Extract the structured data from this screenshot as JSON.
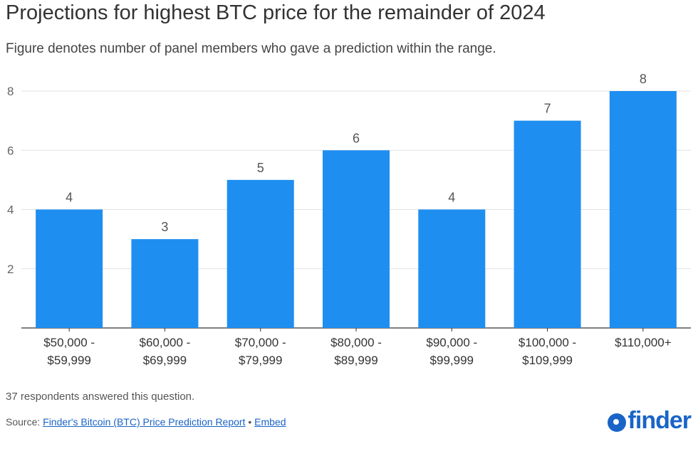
{
  "chart_data": {
    "type": "bar",
    "title": "Projections for highest BTC price for the remainder of 2024",
    "subtitle": "Figure denotes number of panel members who gave a prediction within the range.",
    "categories": [
      [
        "$50,000 -",
        "$59,999"
      ],
      [
        "$60,000 -",
        "$69,999"
      ],
      [
        "$70,000 -",
        "$79,999"
      ],
      [
        "$80,000 -",
        "$89,999"
      ],
      [
        "$90,000 -",
        "$99,999"
      ],
      [
        "$100,000 -",
        "$109,999"
      ],
      [
        "$110,000+"
      ]
    ],
    "values": [
      4,
      3,
      5,
      6,
      4,
      7,
      8
    ],
    "xlabel": "",
    "ylabel": "",
    "ylim": [
      0,
      8
    ],
    "yticks": [
      2,
      4,
      6,
      8
    ],
    "grid": true,
    "bar_color": "#1f8ef1",
    "data_labels": [
      "4",
      "3",
      "5",
      "6",
      "4",
      "7",
      "8"
    ]
  },
  "footer": {
    "note": "37 respondents answered this question.",
    "source_prefix": "Source: ",
    "source_link": "Finder's Bitcoin (BTC) Price Prediction Report",
    "separator": " • ",
    "embed_link": "Embed"
  },
  "logo": {
    "text": "finder",
    "color": "#1a64c8"
  }
}
